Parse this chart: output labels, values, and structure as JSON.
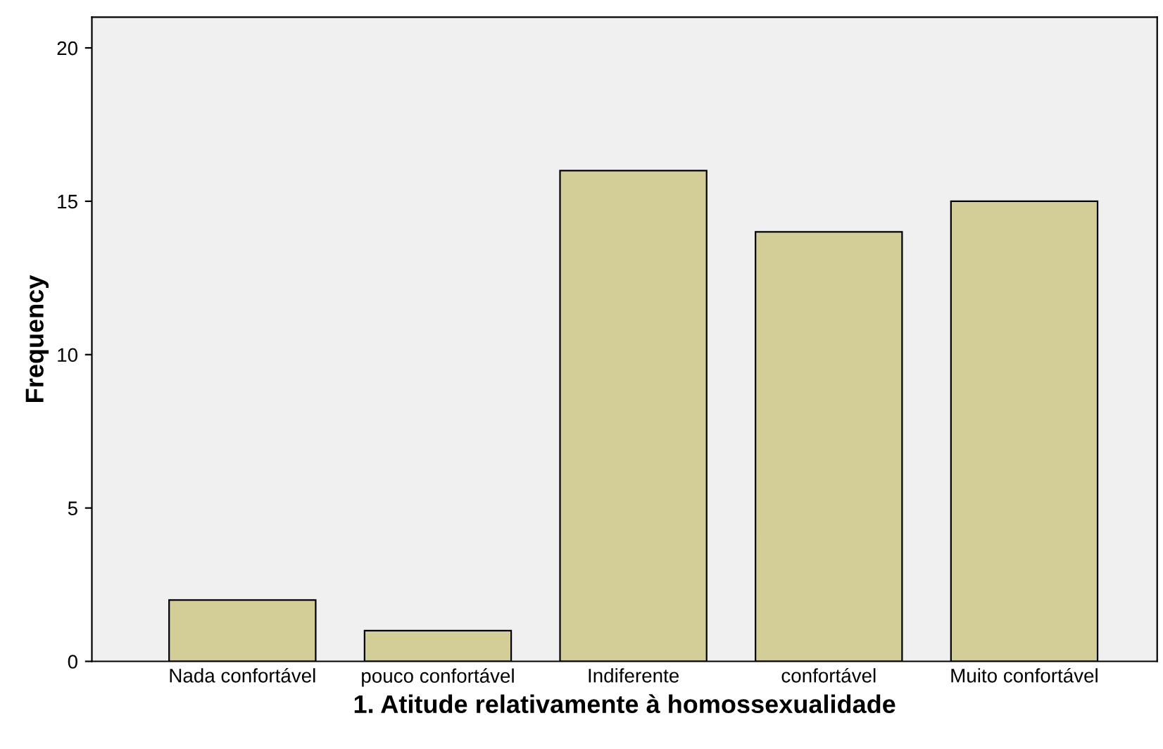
{
  "chart_data": {
    "type": "bar",
    "xlabel": "1. Atitude relativamente à homossexualidade",
    "ylabel": "Frequency",
    "categories": [
      "Nada confortável",
      "pouco confortável",
      "Indiferente",
      "confortável",
      "Muito confortável"
    ],
    "values": [
      2,
      1,
      16,
      14,
      15
    ],
    "color": "#d3ce97",
    "ylim": [
      0,
      21
    ],
    "yticks": [
      0,
      5,
      10,
      15,
      20
    ],
    "grid": false
  }
}
